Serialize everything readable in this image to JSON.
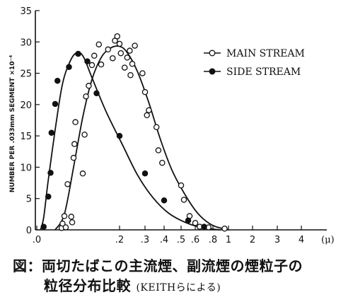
{
  "chart_data": {
    "type": "scatter",
    "ylabel": "NUMBER PER .033mm SEGMENT ×10⁻⁴",
    "xunit": "(μ)",
    "ylim": [
      0,
      35
    ],
    "yticks": [
      0,
      5,
      10,
      15,
      20,
      25,
      30,
      35
    ],
    "ytick_labels": [
      "0",
      "5",
      "10",
      "15",
      "20",
      "25",
      "30",
      "35"
    ],
    "xticks": [
      0.02,
      0.2,
      0.3,
      0.4,
      0.5,
      0.6,
      0.8,
      1,
      2,
      3,
      4
    ],
    "xtick_labels": [
      ".0",
      ".2",
      ".3",
      ".4",
      ".5",
      ".6",
      ".8",
      "1",
      "2",
      "3",
      "4"
    ],
    "legend_position": "top-right",
    "series": [
      {
        "name": "MAIN STREAM",
        "marker": "open-circle",
        "points": [
          [
            0.074,
            0.3
          ],
          [
            0.076,
            1.0
          ],
          [
            0.08,
            2.2
          ],
          [
            0.083,
            0.4
          ],
          [
            0.087,
            7.3
          ],
          [
            0.095,
            2.1
          ],
          [
            0.097,
            1.2
          ],
          [
            0.1,
            11.5
          ],
          [
            0.102,
            13.7
          ],
          [
            0.104,
            17.2
          ],
          [
            0.12,
            9.0
          ],
          [
            0.124,
            15.2
          ],
          [
            0.127,
            21.3
          ],
          [
            0.133,
            23.0
          ],
          [
            0.14,
            26.3
          ],
          [
            0.145,
            27.8
          ],
          [
            0.155,
            29.6
          ],
          [
            0.16,
            26.4
          ],
          [
            0.175,
            28.8
          ],
          [
            0.185,
            27.4
          ],
          [
            0.19,
            30.2
          ],
          [
            0.195,
            30.9
          ],
          [
            0.2,
            29.7
          ],
          [
            0.205,
            28.2
          ],
          [
            0.22,
            25.9
          ],
          [
            0.23,
            27.5
          ],
          [
            0.24,
            28.6
          ],
          [
            0.243,
            24.7
          ],
          [
            0.25,
            26.5
          ],
          [
            0.26,
            29.4
          ],
          [
            0.29,
            25.0
          ],
          [
            0.3,
            22.0
          ],
          [
            0.31,
            18.3
          ],
          [
            0.32,
            19.1
          ],
          [
            0.36,
            16.4
          ],
          [
            0.37,
            12.7
          ],
          [
            0.39,
            10.7
          ],
          [
            0.5,
            7.1
          ],
          [
            0.52,
            4.8
          ],
          [
            0.56,
            2.2
          ],
          [
            0.6,
            1.1
          ],
          [
            0.65,
            0.5
          ],
          [
            0.75,
            0.4
          ],
          [
            0.95,
            0.2
          ]
        ]
      },
      {
        "name": "SIDE STREAM",
        "marker": "filled-circle",
        "points": [
          [
            0.035,
            0.5
          ],
          [
            0.045,
            5.3
          ],
          [
            0.05,
            9.1
          ],
          [
            0.052,
            15.5
          ],
          [
            0.06,
            20.1
          ],
          [
            0.065,
            23.8
          ],
          [
            0.09,
            26.0
          ],
          [
            0.11,
            28.1
          ],
          [
            0.13,
            26.9
          ],
          [
            0.15,
            21.8
          ],
          [
            0.2,
            15.0
          ],
          [
            0.3,
            9.0
          ],
          [
            0.4,
            4.7
          ],
          [
            0.55,
            1.5
          ],
          [
            0.7,
            0.5
          ]
        ]
      }
    ],
    "curves": [
      {
        "series": "MAIN STREAM",
        "points": [
          [
            0.06,
            0
          ],
          [
            0.08,
            2.5
          ],
          [
            0.1,
            10.0
          ],
          [
            0.12,
            18.0
          ],
          [
            0.14,
            24.0
          ],
          [
            0.16,
            27.5
          ],
          [
            0.18,
            29.0
          ],
          [
            0.2,
            29.3
          ],
          [
            0.23,
            28.3
          ],
          [
            0.27,
            25.3
          ],
          [
            0.32,
            20.3
          ],
          [
            0.38,
            14.5
          ],
          [
            0.45,
            9.3
          ],
          [
            0.55,
            4.8
          ],
          [
            0.65,
            2.3
          ],
          [
            0.8,
            0.7
          ],
          [
            1.0,
            0
          ]
        ]
      },
      {
        "series": "SIDE STREAM",
        "points": [
          [
            0.028,
            0
          ],
          [
            0.035,
            2.0
          ],
          [
            0.045,
            8.0
          ],
          [
            0.06,
            16.0
          ],
          [
            0.075,
            23.0
          ],
          [
            0.09,
            26.5
          ],
          [
            0.105,
            28.2
          ],
          [
            0.12,
            27.8
          ],
          [
            0.14,
            24.3
          ],
          [
            0.17,
            19.0
          ],
          [
            0.21,
            13.7
          ],
          [
            0.27,
            8.8
          ],
          [
            0.34,
            5.2
          ],
          [
            0.43,
            2.6
          ],
          [
            0.55,
            1.0
          ],
          [
            0.7,
            0.3
          ],
          [
            0.9,
            0
          ]
        ]
      }
    ]
  },
  "caption": {
    "line1": "図：両切たばこの主流煙、副流煙の煙粒子の",
    "line2": "粒径分布比較",
    "line2_source": "(KEITHらによる)"
  }
}
